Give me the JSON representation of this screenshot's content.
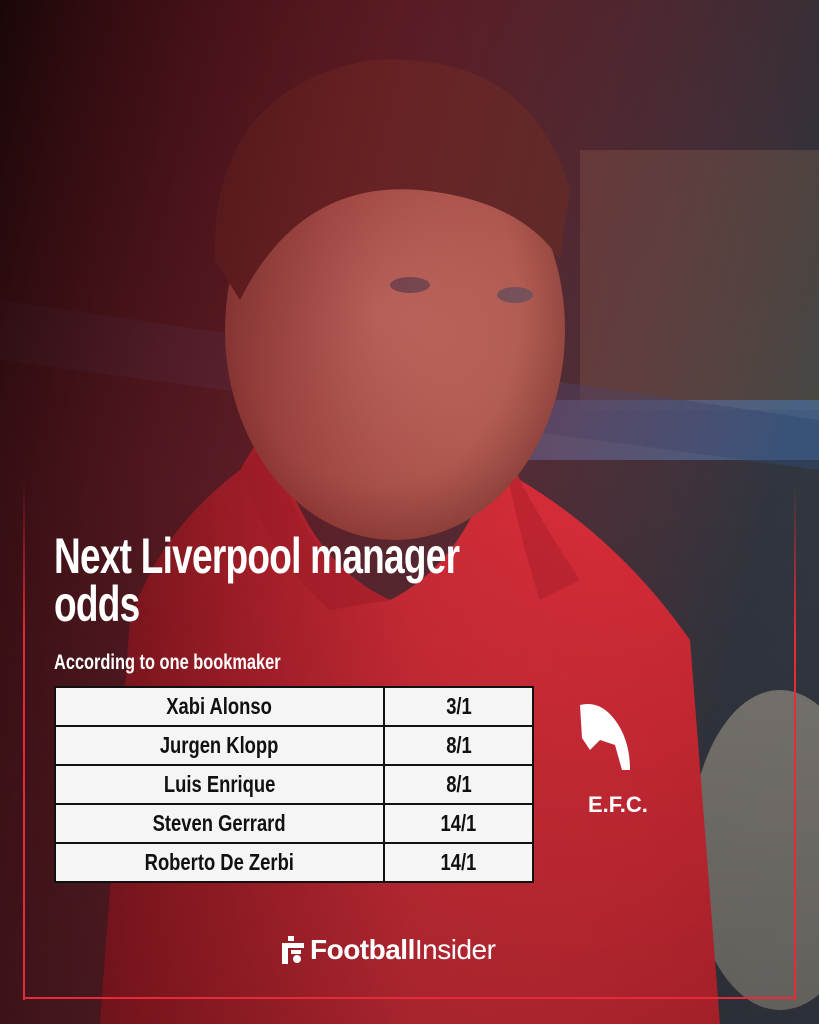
{
  "headline": {
    "title": "Next Liverpool manager odds",
    "subtitle": "According to one bookmaker"
  },
  "odds_table": {
    "rows": [
      {
        "name": "Xabi Alonso",
        "odds": "3/1"
      },
      {
        "name": "Jurgen Klopp",
        "odds": "8/1"
      },
      {
        "name": "Luis Enrique",
        "odds": "8/1"
      },
      {
        "name": "Steven Gerrard",
        "odds": "14/1"
      },
      {
        "name": "Roberto De Zerbi",
        "odds": "14/1"
      }
    ]
  },
  "shirt_badge": "E.F.C.",
  "brand": {
    "bold": "Football",
    "regular": "Insider"
  },
  "colors": {
    "accent": "#e62a3a",
    "shirt": "#e8343f",
    "table_bg": "#f5f5f5"
  }
}
